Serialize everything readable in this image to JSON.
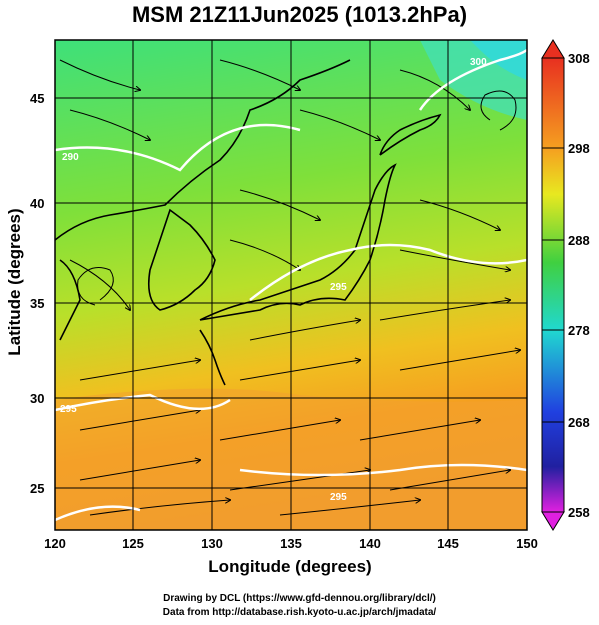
{
  "title": "MSM 21Z11Jun2025 (1013.2hPa)",
  "x_axis": {
    "label": "Longitude (degrees)",
    "ticks": [
      "120",
      "125",
      "130",
      "135",
      "140",
      "145",
      "150"
    ]
  },
  "y_axis": {
    "label": "Latitude  (degrees)",
    "ticks": [
      "25",
      "30",
      "35",
      "40",
      "45"
    ]
  },
  "colorbar": {
    "ticks": [
      "308",
      "298",
      "288",
      "278",
      "268",
      "258"
    ]
  },
  "contour_labels": [
    "290",
    "295",
    "295",
    "295",
    "300"
  ],
  "credits": {
    "line1": "Drawing by DCL (https://www.gfd-dennou.org/library/dcl/)",
    "line2": "Data from http://database.rish.kyoto-u.ac.jp/arch/jmadata/"
  }
}
